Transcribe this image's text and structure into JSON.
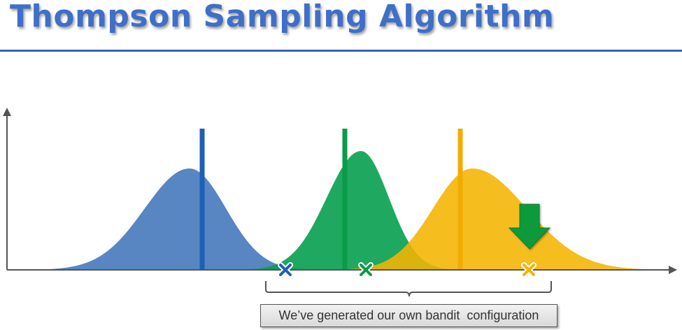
{
  "title": "Thompson Sampling Algorithm",
  "caption": "We’ve generated our own bandit  configuration",
  "colors": {
    "title": "#3f6fc7",
    "rule": "#3c64b4",
    "blue": "#4f7fbf",
    "blue_line": "#1f5fb5",
    "green": "#07a04f",
    "green_line": "#0a9a4a",
    "yellow": "#f5b400",
    "yellow_line": "#f2ac00",
    "arrow": "#0e9a3e",
    "axis": "#555555",
    "bracket": "#555555"
  },
  "diagram": {
    "distributions": [
      {
        "name": "blue",
        "icon": "cross-mark-icon"
      },
      {
        "name": "green",
        "icon": "cross-mark-icon"
      },
      {
        "name": "yellow",
        "icon": "cross-mark-icon"
      }
    ],
    "arrow_icon": "down-arrow-icon"
  }
}
